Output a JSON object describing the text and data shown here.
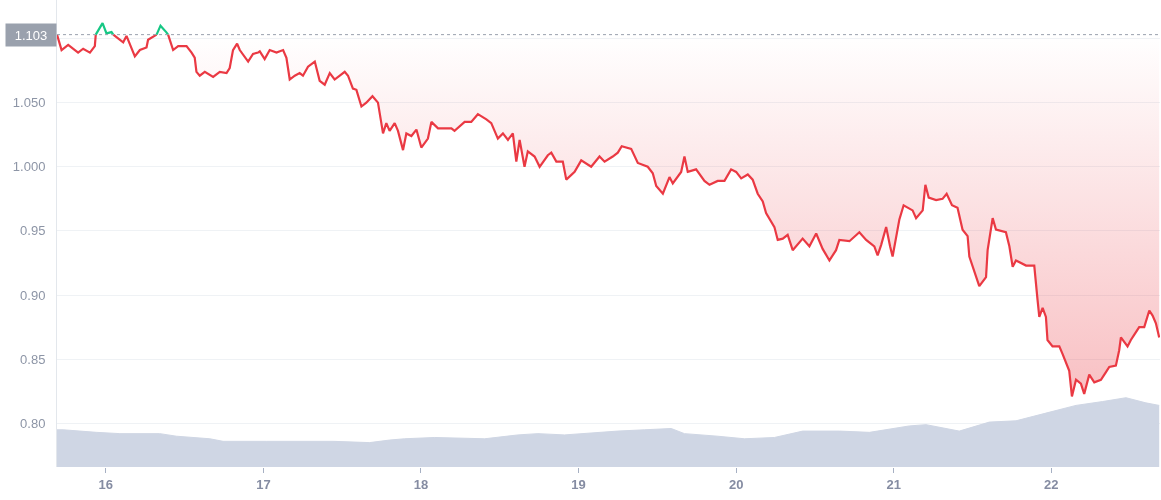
{
  "chart_data": {
    "type": "line",
    "xlim": [
      15.69,
      22.69
    ],
    "xticks": [
      16,
      17,
      18,
      19,
      20,
      21,
      22
    ],
    "ylim": [
      0.766,
      1.13
    ],
    "yticks": [
      {
        "value": 0.8,
        "label": "0.80"
      },
      {
        "value": 0.85,
        "label": "0.85"
      },
      {
        "value": 0.9,
        "label": "0.90"
      },
      {
        "value": 0.95,
        "label": "0.95"
      },
      {
        "value": 1.0,
        "label": "1.000"
      },
      {
        "value": 1.05,
        "label": "1.050"
      },
      {
        "value": 1.1,
        "label": null
      }
    ],
    "grid": "y",
    "ref_lines": [
      {
        "axis": "y",
        "value": 1.103,
        "label": "1.103",
        "color": "#9aa1ad",
        "line_style": "dotted"
      }
    ],
    "series": [
      {
        "type": "area",
        "color": "#cfd6e4",
        "x": [
          15.69,
          15.729,
          15.941,
          16.089,
          16.342,
          16.448,
          16.66,
          16.744,
          17.019,
          17.442,
          17.674,
          17.801,
          17.896,
          18.087,
          18.404,
          18.615,
          18.742,
          18.911,
          19.249,
          19.419,
          19.588,
          19.672,
          19.883,
          20.053,
          20.243,
          20.423,
          20.655,
          20.846,
          21.099,
          21.205,
          21.416,
          21.607,
          21.776,
          21.966,
          22.157,
          22.325,
          22.474,
          22.6,
          22.685
        ],
        "values": [
          0.795,
          0.795,
          0.793,
          0.792,
          0.792,
          0.79,
          0.788,
          0.786,
          0.786,
          0.786,
          0.785,
          0.787,
          0.788,
          0.789,
          0.788,
          0.791,
          0.792,
          0.791,
          0.794,
          0.795,
          0.796,
          0.792,
          0.79,
          0.788,
          0.789,
          0.794,
          0.794,
          0.793,
          0.798,
          0.799,
          0.794,
          0.801,
          0.802,
          0.808,
          0.814,
          0.817,
          0.82,
          0.816,
          0.814
        ]
      },
      {
        "color": "#ea3943",
        "x": [
          15.69,
          15.719,
          15.761,
          15.824,
          15.856,
          15.899,
          15.93,
          15.936,
          15.99,
          16.047,
          16.11,
          16.131,
          16.184,
          16.216,
          16.258,
          16.268,
          16.322,
          16.36,
          16.395,
          16.427,
          16.459,
          16.512,
          16.544,
          16.564,
          16.575,
          16.596,
          16.628,
          16.681,
          16.723,
          16.766,
          16.786,
          16.807,
          16.833,
          16.85,
          16.903,
          16.934,
          16.966,
          16.977,
          17.008,
          17.04,
          17.083,
          17.125,
          17.146,
          17.167,
          17.199,
          17.23,
          17.251,
          17.283,
          17.326,
          17.357,
          17.389,
          17.421,
          17.452,
          17.516,
          17.537,
          17.568,
          17.59,
          17.622,
          17.653,
          17.692,
          17.727,
          17.759,
          17.78,
          17.801,
          17.833,
          17.854,
          17.886,
          17.907,
          17.939,
          17.971,
          18.002,
          18.044,
          18.066,
          18.108,
          18.193,
          18.213,
          18.277,
          18.319,
          18.361,
          18.415,
          18.446,
          18.488,
          18.52,
          18.552,
          18.583,
          18.605,
          18.626,
          18.657,
          18.678,
          18.721,
          18.753,
          18.805,
          18.827,
          18.859,
          18.9,
          18.922,
          18.975,
          19.017,
          19.08,
          19.133,
          19.165,
          19.217,
          19.249,
          19.274,
          19.334,
          19.376,
          19.439,
          19.471,
          19.493,
          19.535,
          19.577,
          19.598,
          19.651,
          19.672,
          19.693,
          19.746,
          19.799,
          19.831,
          19.883,
          19.926,
          19.968,
          20.0,
          20.032,
          20.074,
          20.105,
          20.137,
          20.169,
          20.19,
          20.243,
          20.264,
          20.296,
          20.327,
          20.359,
          20.422,
          20.465,
          20.508,
          20.549,
          20.592,
          20.634,
          20.655,
          20.719,
          20.782,
          20.825,
          20.877,
          20.898,
          20.92,
          20.952,
          20.977,
          20.993,
          21.036,
          21.063,
          21.12,
          21.142,
          21.184,
          21.201,
          21.222,
          21.269,
          21.31,
          21.336,
          21.37,
          21.405,
          21.437,
          21.469,
          21.48,
          21.543,
          21.586,
          21.596,
          21.628,
          21.649,
          21.712,
          21.734,
          21.755,
          21.776,
          21.84,
          21.892,
          21.913,
          21.924,
          21.945,
          21.966,
          21.976,
          22.008,
          22.051,
          22.072,
          22.114,
          22.131,
          22.157,
          22.188,
          22.209,
          22.241,
          22.273,
          22.315,
          22.347,
          22.368,
          22.41,
          22.431,
          22.442,
          22.484,
          22.505,
          22.526,
          22.558,
          22.59,
          22.622,
          22.643,
          22.664,
          22.685
        ],
        "values": [
          1.103,
          1.091,
          1.095,
          1.089,
          1.092,
          1.089,
          1.094,
          1.103,
          null,
          1.103,
          1.097,
          1.102,
          1.086,
          1.091,
          1.093,
          1.099,
          1.103,
          null,
          1.103,
          1.091,
          1.094,
          1.094,
          1.089,
          1.085,
          1.074,
          1.071,
          1.074,
          1.07,
          1.074,
          1.073,
          1.077,
          1.091,
          1.096,
          1.091,
          1.082,
          1.088,
          1.089,
          1.09,
          1.084,
          1.091,
          1.089,
          1.091,
          1.085,
          1.068,
          1.071,
          1.073,
          1.071,
          1.078,
          1.082,
          1.067,
          1.064,
          1.073,
          1.068,
          1.074,
          1.071,
          1.061,
          1.06,
          1.047,
          1.05,
          1.055,
          1.05,
          1.026,
          1.034,
          1.028,
          1.034,
          1.028,
          1.013,
          1.026,
          1.024,
          1.029,
          1.015,
          1.022,
          1.035,
          1.03,
          1.03,
          1.028,
          1.035,
          1.035,
          1.041,
          1.037,
          1.034,
          1.022,
          1.026,
          1.021,
          1.026,
          1.004,
          1.021,
          1.0,
          1.012,
          1.008,
          1.0,
          1.009,
          1.011,
          1.004,
          1.004,
          0.99,
          0.996,
          1.005,
          1.0,
          1.008,
          1.004,
          1.008,
          1.011,
          1.016,
          1.014,
          1.003,
          1.0,
          0.995,
          0.985,
          0.979,
          0.992,
          0.987,
          0.996,
          1.008,
          0.996,
          0.998,
          0.989,
          0.986,
          0.989,
          0.989,
          0.998,
          0.996,
          0.991,
          0.994,
          0.99,
          0.979,
          0.973,
          0.964,
          0.953,
          0.943,
          0.944,
          0.947,
          0.935,
          0.944,
          0.938,
          0.948,
          0.936,
          0.927,
          0.935,
          0.943,
          0.942,
          0.949,
          0.943,
          0.938,
          0.931,
          0.939,
          0.953,
          0.938,
          0.93,
          0.959,
          0.97,
          0.966,
          0.96,
          0.966,
          0.986,
          0.976,
          0.974,
          0.975,
          0.979,
          0.97,
          0.968,
          0.951,
          0.946,
          0.93,
          0.907,
          0.914,
          0.935,
          0.96,
          0.951,
          0.949,
          0.938,
          0.922,
          0.927,
          0.923,
          0.923,
          0.896,
          0.883,
          0.89,
          0.883,
          0.865,
          0.86,
          0.86,
          0.854,
          0.841,
          0.821,
          0.834,
          0.831,
          0.823,
          0.838,
          0.832,
          0.834,
          0.84,
          0.844,
          0.845,
          0.857,
          0.867,
          0.86,
          0.865,
          0.869,
          0.875,
          0.875,
          0.888,
          0.884,
          0.878,
          0.867
        ],
        "lower": [
          1.103,
          1.091,
          1.095,
          1.089,
          1.092,
          1.089,
          1.094,
          1.103,
          null,
          1.103,
          1.097,
          1.102,
          1.086,
          1.091,
          1.093,
          1.099,
          1.103,
          null,
          1.103,
          1.091,
          1.094,
          1.094,
          1.089,
          1.085,
          1.074,
          1.071,
          1.074,
          1.07,
          1.074,
          1.073,
          1.077,
          1.091,
          1.096,
          1.091,
          1.082,
          1.088,
          1.089,
          1.09,
          1.084,
          1.091,
          1.089,
          1.091,
          1.085,
          1.068,
          1.071,
          1.073,
          1.071,
          1.078,
          1.082,
          1.067,
          1.064,
          1.073,
          1.068,
          1.074,
          1.071,
          1.061,
          1.06,
          1.047,
          1.05,
          1.055,
          1.05,
          1.026,
          1.034,
          1.028,
          1.034,
          1.028,
          1.013,
          1.026,
          1.024,
          1.029,
          1.015,
          1.022,
          1.035,
          1.03,
          1.03,
          1.028,
          1.035,
          1.035,
          1.041,
          1.037,
          1.034,
          1.022,
          1.026,
          1.021,
          1.026,
          1.004,
          1.021,
          1.0,
          1.012,
          1.008,
          1.0,
          1.009,
          1.011,
          1.004,
          1.004,
          0.99,
          0.996,
          1.005,
          1.0,
          1.008,
          1.004,
          1.008,
          1.011,
          1.016,
          1.014,
          1.003,
          1.0,
          0.995,
          0.985,
          0.979,
          0.992,
          0.987,
          0.996,
          1.008,
          0.996,
          0.998,
          0.989,
          0.986,
          0.989,
          0.989,
          0.998,
          0.996,
          0.991,
          0.994,
          0.99,
          0.979,
          0.973,
          0.964,
          0.953,
          0.943,
          0.944,
          0.947,
          0.935,
          0.944,
          0.938,
          0.948,
          0.936,
          0.927,
          0.935,
          0.943,
          0.942,
          0.949,
          0.943,
          0.938,
          0.931,
          0.939,
          0.953,
          0.938,
          0.93,
          0.959,
          0.97,
          0.966,
          0.96,
          0.966,
          0.986,
          0.976,
          0.974,
          0.975,
          0.979,
          0.97,
          0.968,
          0.951,
          0.946,
          0.93,
          0.907,
          0.914,
          0.935,
          0.96,
          0.951,
          0.949,
          0.938,
          0.922,
          0.927,
          0.923,
          0.923,
          0.896,
          0.883,
          0.89,
          0.883,
          0.865,
          0.86,
          0.86,
          0.854,
          0.841,
          0.821,
          0.834,
          0.831,
          0.823,
          0.838,
          0.832,
          0.834,
          0.84,
          0.844,
          0.845,
          0.857,
          0.867,
          0.86,
          0.865,
          0.869,
          0.875,
          0.875,
          0.888,
          0.884,
          0.878,
          0.867
        ],
        "upper": [
          1.103,
          1.103,
          1.103,
          1.103,
          1.103,
          1.103,
          1.103,
          1.103,
          null,
          1.103,
          1.103,
          1.103,
          1.103,
          1.103,
          1.103,
          1.103,
          1.103,
          null,
          1.103,
          1.103,
          1.103,
          1.103,
          1.103,
          1.103,
          1.103,
          1.103,
          1.103,
          1.103,
          1.103,
          1.103,
          1.103,
          1.103,
          1.103,
          1.103,
          1.103,
          1.103,
          1.103,
          1.103,
          1.103,
          1.103,
          1.103,
          1.103,
          1.103,
          1.103,
          1.103,
          1.103,
          1.103,
          1.103,
          1.103,
          1.103,
          1.103,
          1.103,
          1.103,
          1.103,
          1.103,
          1.103,
          1.103,
          1.103,
          1.103,
          1.103,
          1.103,
          1.103,
          1.103,
          1.103,
          1.103,
          1.103,
          1.103,
          1.103,
          1.103,
          1.103,
          1.103,
          1.103,
          1.103,
          1.103,
          1.103,
          1.103,
          1.103,
          1.103,
          1.103,
          1.103,
          1.103,
          1.103,
          1.103,
          1.103,
          1.103,
          1.103,
          1.103,
          1.103,
          1.103,
          1.103,
          1.103,
          1.103,
          1.103,
          1.103,
          1.103,
          1.103,
          1.103,
          1.103,
          1.103,
          1.103,
          1.103,
          1.103,
          1.103,
          1.103,
          1.103,
          1.103,
          1.103,
          1.103,
          1.103,
          1.103,
          1.103,
          1.103,
          1.103,
          1.103,
          1.103,
          1.103,
          1.103,
          1.103,
          1.103,
          1.103,
          1.103,
          1.103,
          1.103,
          1.103,
          1.103,
          1.103,
          1.103,
          1.103,
          1.103,
          1.103,
          1.103,
          1.103,
          1.103,
          1.103,
          1.103,
          1.103,
          1.103,
          1.103,
          1.103,
          1.103,
          1.103,
          1.103,
          1.103,
          1.103,
          1.103,
          1.103,
          1.103,
          1.103,
          1.103,
          1.103,
          1.103,
          1.103,
          1.103,
          1.103,
          1.103,
          1.103,
          1.103,
          1.103,
          1.103,
          1.103,
          1.103,
          1.103,
          1.103,
          1.103,
          1.103,
          1.103,
          1.103,
          1.103,
          1.103,
          1.103,
          1.103,
          1.103,
          1.103,
          1.103,
          1.103,
          1.103,
          1.103,
          1.103,
          1.103,
          1.103,
          1.103,
          1.103,
          1.103,
          1.103,
          1.103,
          1.103,
          1.103,
          1.103,
          1.103,
          1.103,
          1.103,
          1.103,
          1.103,
          1.103,
          1.103,
          1.103,
          1.103,
          1.103,
          1.103,
          1.103,
          1.103,
          1.103,
          1.103,
          1.103,
          1.103
        ]
      },
      {
        "color": "#16c784",
        "x": [
          15.936,
          15.979,
          16.004,
          16.036,
          16.047,
          16.2,
          16.322,
          16.347,
          16.383,
          16.395
        ],
        "values": [
          1.103,
          1.112,
          1.104,
          1.105,
          1.103,
          null,
          1.103,
          1.11,
          1.105,
          1.103
        ]
      }
    ]
  }
}
